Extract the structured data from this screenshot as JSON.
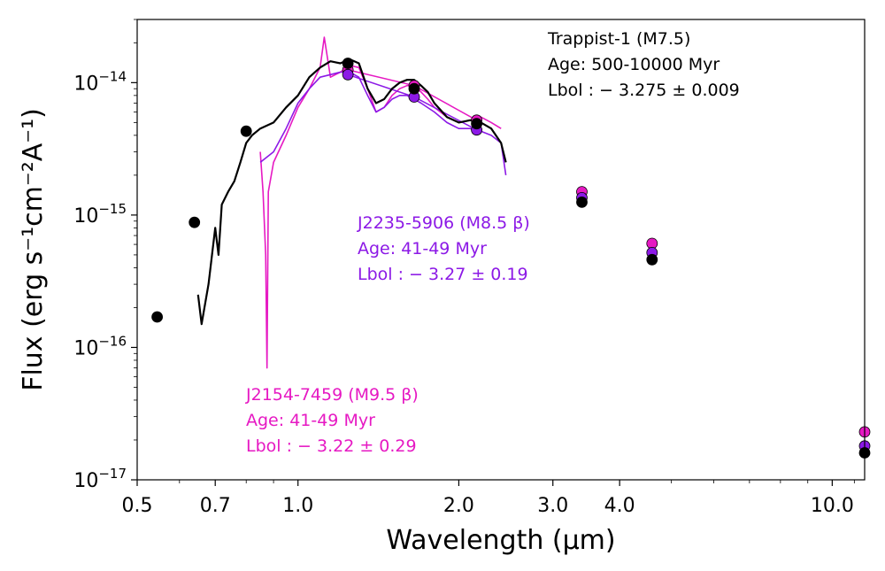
{
  "chart_data": {
    "type": "scatter",
    "xlabel": "Wavelength (μm)",
    "ylabel": "Flux  (erg s⁻¹cm⁻²A⁻¹)",
    "xscale": "log",
    "yscale": "log",
    "xlim": [
      0.5,
      11.5
    ],
    "ylim": [
      1e-17,
      3e-14
    ],
    "xticks": [
      {
        "value": 0.5,
        "label": "0.5"
      },
      {
        "value": 0.7,
        "label": "0.7"
      },
      {
        "value": 1.0,
        "label": "1.0"
      },
      {
        "value": 2.0,
        "label": "2.0"
      },
      {
        "value": 3.0,
        "label": "3.0"
      },
      {
        "value": 4.0,
        "label": "4.0"
      },
      {
        "value": 10.0,
        "label": "10.0"
      }
    ],
    "yticks": [
      {
        "value": 1e-17,
        "base": "10",
        "exp": "−17"
      },
      {
        "value": 1e-16,
        "base": "10",
        "exp": "−16"
      },
      {
        "value": 1e-15,
        "base": "10",
        "exp": "−15"
      },
      {
        "value": 1e-14,
        "base": "10",
        "exp": "−14"
      }
    ],
    "series": [
      {
        "color": "#e619c3",
        "annotation": [
          "J2154-7459 (M9.5 β)",
          "Age: 41-49 Myr",
          "Lbol : − 3.22 ± 0.29"
        ],
        "spectrum": [
          [
            0.85,
            3e-15
          ],
          [
            0.86,
            1.5e-15
          ],
          [
            0.87,
            5e-16
          ],
          [
            0.875,
            7e-17
          ],
          [
            0.88,
            1.5e-15
          ],
          [
            0.9,
            2.5e-15
          ],
          [
            0.95,
            4e-15
          ],
          [
            1.0,
            6.5e-15
          ],
          [
            1.05,
            9e-15
          ],
          [
            1.1,
            1.3e-14
          ],
          [
            1.12,
            2.2e-14
          ],
          [
            1.15,
            1.1e-14
          ],
          [
            1.2,
            1.2e-14
          ],
          [
            1.25,
            1.35e-14
          ],
          [
            1.3,
            1.3e-14
          ],
          [
            1.35,
            9e-15
          ],
          [
            1.4,
            6e-15
          ],
          [
            1.45,
            6.5e-15
          ],
          [
            1.5,
            8e-15
          ],
          [
            1.55,
            9e-15
          ],
          [
            1.6,
            9.5e-15
          ],
          [
            1.65,
            9.5e-15
          ],
          [
            1.7,
            8.5e-15
          ],
          [
            1.75,
            7.5e-15
          ],
          [
            1.8,
            6.5e-15
          ],
          [
            1.9,
            5.5e-15
          ],
          [
            2.0,
            5e-15
          ],
          [
            2.1,
            5.2e-15
          ],
          [
            2.2,
            5.5e-15
          ],
          [
            2.3,
            5e-15
          ],
          [
            2.4,
            4.5e-15
          ]
        ],
        "photometry": [
          [
            1.24,
            1.25e-14
          ],
          [
            1.65,
            9.5e-15
          ],
          [
            2.16,
            5.2e-15
          ],
          [
            3.4,
            1.5e-15
          ],
          [
            4.6,
            6.1e-16
          ],
          [
            11.5,
            2.3e-17
          ]
        ]
      },
      {
        "color": "#8c19e6",
        "annotation": [
          "J2235-5906 (M8.5 β)",
          "Age: 41-49 Myr",
          "Lbol : − 3.27 ± 0.19"
        ],
        "spectrum": [
          [
            0.85,
            2.5e-15
          ],
          [
            0.9,
            3e-15
          ],
          [
            0.95,
            4.5e-15
          ],
          [
            1.0,
            7e-15
          ],
          [
            1.05,
            9e-15
          ],
          [
            1.1,
            1.1e-14
          ],
          [
            1.15,
            1.15e-14
          ],
          [
            1.2,
            1.2e-14
          ],
          [
            1.25,
            1.2e-14
          ],
          [
            1.3,
            1.1e-14
          ],
          [
            1.35,
            8e-15
          ],
          [
            1.4,
            6e-15
          ],
          [
            1.45,
            6.5e-15
          ],
          [
            1.5,
            7.5e-15
          ],
          [
            1.55,
            8e-15
          ],
          [
            1.6,
            8e-15
          ],
          [
            1.65,
            7.5e-15
          ],
          [
            1.7,
            7e-15
          ],
          [
            1.8,
            6e-15
          ],
          [
            1.9,
            5e-15
          ],
          [
            2.0,
            4.5e-15
          ],
          [
            2.1,
            4.5e-15
          ],
          [
            2.2,
            4.3e-15
          ],
          [
            2.3,
            4e-15
          ],
          [
            2.4,
            3.5e-15
          ],
          [
            2.45,
            2e-15
          ]
        ],
        "photometry": [
          [
            1.24,
            1.15e-14
          ],
          [
            1.65,
            7.8e-15
          ],
          [
            2.16,
            4.4e-15
          ],
          [
            3.4,
            1.35e-15
          ],
          [
            4.6,
            5.2e-16
          ],
          [
            11.5,
            1.8e-17
          ]
        ]
      },
      {
        "color": "#000000",
        "annotation": [
          "Trappist-1 (M7.5)",
          "Age: 500-10000 Myr",
          "Lbol : − 3.275 ± 0.009"
        ],
        "spectrum": [
          [
            0.65,
            2.5e-16
          ],
          [
            0.66,
            1.5e-16
          ],
          [
            0.68,
            3e-16
          ],
          [
            0.7,
            8e-16
          ],
          [
            0.71,
            5e-16
          ],
          [
            0.72,
            1.2e-15
          ],
          [
            0.74,
            1.5e-15
          ],
          [
            0.76,
            1.8e-15
          ],
          [
            0.78,
            2.5e-15
          ],
          [
            0.8,
            3.5e-15
          ],
          [
            0.82,
            4e-15
          ],
          [
            0.85,
            4.5e-15
          ],
          [
            0.9,
            5e-15
          ],
          [
            0.95,
            6.5e-15
          ],
          [
            1.0,
            8e-15
          ],
          [
            1.05,
            1.1e-14
          ],
          [
            1.1,
            1.3e-14
          ],
          [
            1.15,
            1.45e-14
          ],
          [
            1.2,
            1.4e-14
          ],
          [
            1.25,
            1.5e-14
          ],
          [
            1.3,
            1.4e-14
          ],
          [
            1.35,
            9e-15
          ],
          [
            1.4,
            7e-15
          ],
          [
            1.45,
            7.5e-15
          ],
          [
            1.5,
            9e-15
          ],
          [
            1.55,
            1e-14
          ],
          [
            1.6,
            1.05e-14
          ],
          [
            1.65,
            1.05e-14
          ],
          [
            1.7,
            9.5e-15
          ],
          [
            1.75,
            8.5e-15
          ],
          [
            1.8,
            7e-15
          ],
          [
            1.9,
            5.5e-15
          ],
          [
            2.0,
            5e-15
          ],
          [
            2.1,
            5.2e-15
          ],
          [
            2.2,
            5e-15
          ],
          [
            2.3,
            4.5e-15
          ],
          [
            2.4,
            3.5e-15
          ],
          [
            2.45,
            2.5e-15
          ]
        ],
        "photometry": [
          [
            0.545,
            1.7e-16
          ],
          [
            0.64,
            8.8e-16
          ],
          [
            0.8,
            4.3e-15
          ],
          [
            1.24,
            1.4e-14
          ],
          [
            1.65,
            9e-15
          ],
          [
            2.16,
            4.9e-15
          ],
          [
            3.4,
            1.25e-15
          ],
          [
            4.6,
            4.6e-16
          ],
          [
            11.5,
            1.6e-17
          ]
        ]
      }
    ]
  }
}
